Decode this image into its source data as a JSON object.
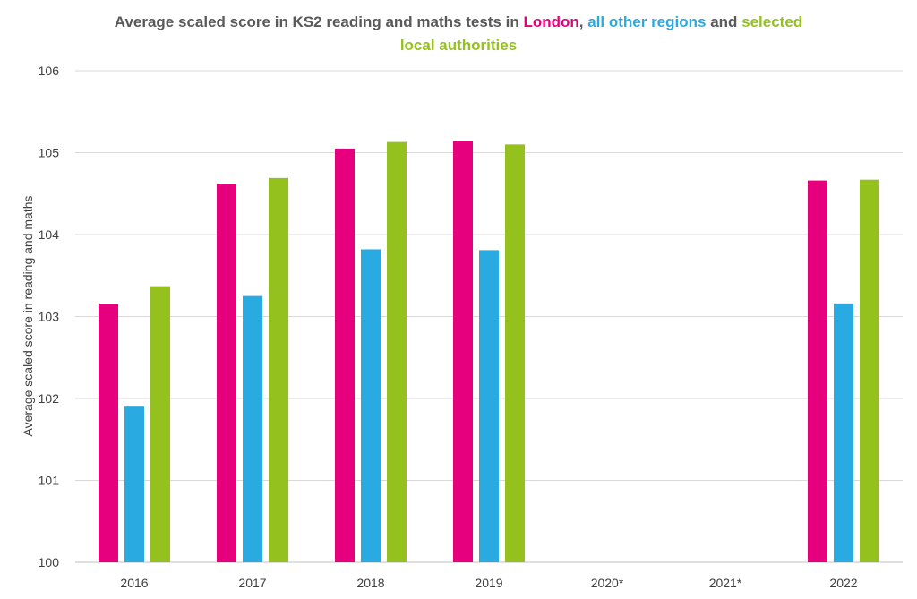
{
  "chart_data": {
    "type": "bar",
    "title_parts": [
      {
        "text": "Average scaled score in KS2 reading and maths tests in ",
        "color": "#595959"
      },
      {
        "text": "London",
        "color": "#e6007e"
      },
      {
        "text": ", ",
        "color": "#595959"
      },
      {
        "text": "all other regions",
        "color": "#29abe2"
      },
      {
        "text": " and ",
        "color": "#595959"
      },
      {
        "text": "selected",
        "color": "#95c11f"
      }
    ],
    "title_line2": {
      "text": "local authorities",
      "color": "#95c11f"
    },
    "ylabel": "Average scaled score in reading and maths",
    "xlabel": "",
    "ylim": [
      100,
      106
    ],
    "yticks": [
      "100",
      "101",
      "102",
      "103",
      "104",
      "105",
      "106"
    ],
    "grid": true,
    "categories": [
      "2016",
      "2017",
      "2018",
      "2019",
      "2020*",
      "2021*",
      "2022"
    ],
    "series": [
      {
        "name": "London",
        "color": "#e6007e",
        "values": [
          103.15,
          104.62,
          105.05,
          105.14,
          null,
          null,
          104.66
        ]
      },
      {
        "name": "all other regions",
        "color": "#29abe2",
        "values": [
          101.9,
          103.25,
          103.82,
          103.81,
          null,
          null,
          103.16
        ]
      },
      {
        "name": "selected local authorities",
        "color": "#95c11f",
        "values": [
          103.37,
          104.69,
          105.13,
          105.1,
          null,
          null,
          104.67
        ]
      }
    ]
  }
}
